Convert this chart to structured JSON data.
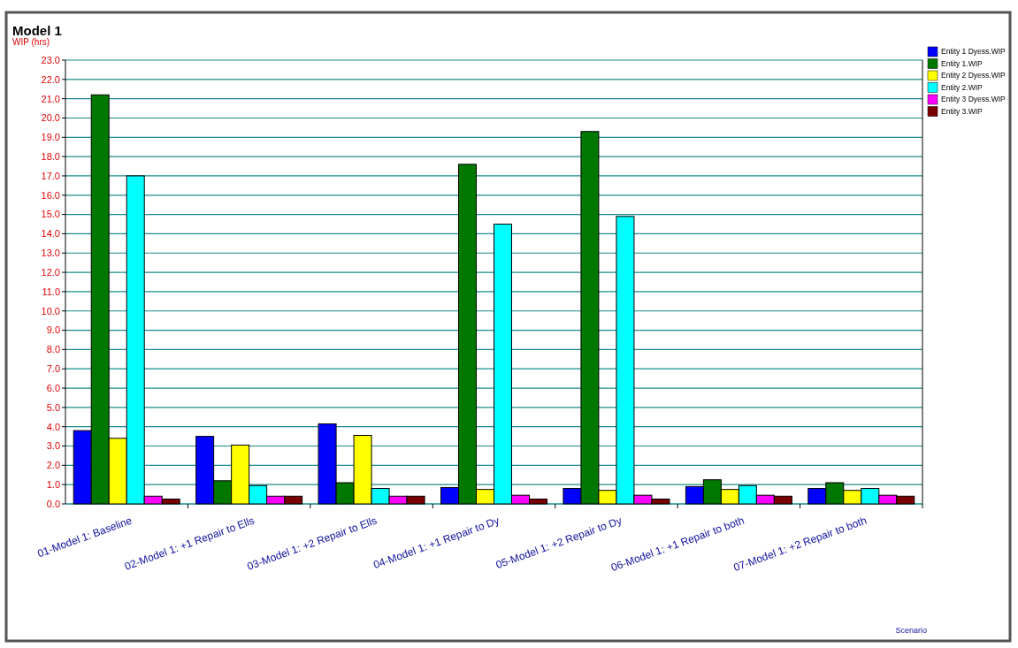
{
  "chart_data": {
    "type": "bar",
    "title": "Model 1",
    "ylabel": "WIP (hrs)",
    "annotations": [
      "Scenario"
    ],
    "categories": [
      "01-Model 1: Baseline",
      "02-Model 1: +1 Repair to Ells",
      "03-Model 1: +2 Repair to Ells",
      "04-Model 1: +1 Repair to Dy",
      "05-Model 1: +2 Repair to Dy",
      "06-Model 1: +1 Repair to both",
      "07-Model 1: +2 Repair to both"
    ],
    "series": [
      {
        "name": "Entity 1 Dyess.WIP",
        "color": "#0000ff",
        "values": [
          3.8,
          3.5,
          4.15,
          0.85,
          0.8,
          0.9,
          0.8
        ]
      },
      {
        "name": "Entity 1.WIP",
        "color": "#007800",
        "values": [
          21.2,
          1.2,
          1.1,
          17.6,
          19.3,
          1.25,
          1.1
        ]
      },
      {
        "name": "Entity 2 Dyess.WIP",
        "color": "#ffff00",
        "values": [
          3.4,
          3.05,
          3.55,
          0.75,
          0.7,
          0.75,
          0.7
        ]
      },
      {
        "name": "Entity 2.WIP",
        "color": "#00ffff",
        "values": [
          17.0,
          0.95,
          0.8,
          14.5,
          14.9,
          0.95,
          0.8
        ]
      },
      {
        "name": "Entity 3 Dyess.WIP",
        "color": "#ff00ff",
        "values": [
          0.4,
          0.4,
          0.4,
          0.45,
          0.45,
          0.45,
          0.45
        ]
      },
      {
        "name": "Entity 3.WIP",
        "color": "#7a0000",
        "values": [
          0.25,
          0.4,
          0.4,
          0.25,
          0.25,
          0.4,
          0.4
        ]
      }
    ],
    "ylim": [
      0,
      23
    ],
    "yticks": [
      {
        "value": 0,
        "label": "0.0"
      },
      {
        "value": 1,
        "label": "1.0"
      },
      {
        "value": 2,
        "label": "2.0"
      },
      {
        "value": 3,
        "label": "3.0"
      },
      {
        "value": 4,
        "label": "4.0"
      },
      {
        "value": 5,
        "label": "5.0"
      },
      {
        "value": 6,
        "label": "6.0"
      },
      {
        "value": 7,
        "label": "7.0"
      },
      {
        "value": 8,
        "label": "8.0"
      },
      {
        "value": 9,
        "label": "9.0"
      },
      {
        "value": 10,
        "label": "10.0"
      },
      {
        "value": 11,
        "label": "11.0"
      },
      {
        "value": 12,
        "label": "12.0"
      },
      {
        "value": 13,
        "label": "13.0"
      },
      {
        "value": 14,
        "label": "14.0"
      },
      {
        "value": 15,
        "label": "15.0"
      },
      {
        "value": 16,
        "label": "16.0"
      },
      {
        "value": 17,
        "label": "17.0"
      },
      {
        "value": 18,
        "label": "18.0"
      },
      {
        "value": 19,
        "label": "19.0"
      },
      {
        "value": 20,
        "label": "20.0"
      },
      {
        "value": 21,
        "label": "21.0"
      },
      {
        "value": 22,
        "label": "22.0"
      },
      {
        "value": 23,
        "label": "23.0"
      }
    ],
    "grid": "y",
    "legend": "top right"
  }
}
